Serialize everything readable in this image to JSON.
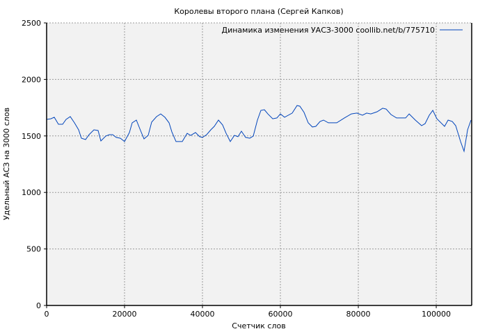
{
  "chart_data": {
    "type": "line",
    "title": "Королевы второго плана (Сергей Капков)",
    "xlabel": "Счетчик слов",
    "ylabel": "Удельный АСЗ на 3000 слов",
    "xlim": [
      0,
      109100
    ],
    "ylim": [
      0,
      2500
    ],
    "xticks": [
      0,
      20000,
      40000,
      60000,
      80000,
      100000
    ],
    "yticks": [
      0,
      500,
      1000,
      1500,
      2000,
      2500
    ],
    "grid": true,
    "legend_position": "top-right",
    "colors": {
      "line": "#0044bb",
      "background": "#f2f2f2",
      "grid": "#999999"
    },
    "series": [
      {
        "name": "Динамика изменения УАСЗ-3000 coollib.net/b/775710",
        "x": [
          0,
          1070,
          1960,
          3040,
          4110,
          5000,
          6070,
          7140,
          8210,
          8930,
          10000,
          10890,
          12140,
          13210,
          13930,
          15180,
          16070,
          16960,
          17860,
          18930,
          20000,
          21250,
          21960,
          23040,
          24110,
          25000,
          26070,
          26960,
          28210,
          29290,
          30360,
          31430,
          32140,
          33210,
          34820,
          36070,
          36960,
          38210,
          39290,
          40000,
          41070,
          42140,
          43040,
          44110,
          45180,
          46070,
          47140,
          48210,
          49110,
          50000,
          51070,
          52140,
          53040,
          54110,
          55000,
          55890,
          56790,
          58040,
          59110,
          60000,
          61070,
          63040,
          64290,
          65000,
          66070,
          67140,
          68210,
          69110,
          70180,
          71070,
          72320,
          74460,
          76430,
          78210,
          79640,
          81070,
          82140,
          83210,
          84820,
          86250,
          87140,
          88390,
          89820,
          92140,
          93040,
          94640,
          96250,
          97140,
          98210,
          99110,
          100180,
          102140,
          103040,
          104110,
          105000,
          106250,
          107140,
          108040,
          108930
        ],
        "y": [
          1646,
          1652,
          1665,
          1603,
          1603,
          1646,
          1671,
          1616,
          1554,
          1480,
          1468,
          1511,
          1554,
          1548,
          1456,
          1499,
          1511,
          1511,
          1487,
          1480,
          1450,
          1530,
          1616,
          1640,
          1548,
          1474,
          1505,
          1622,
          1671,
          1695,
          1665,
          1616,
          1536,
          1450,
          1450,
          1523,
          1505,
          1530,
          1493,
          1487,
          1511,
          1554,
          1585,
          1640,
          1597,
          1523,
          1450,
          1505,
          1493,
          1542,
          1487,
          1480,
          1499,
          1640,
          1726,
          1732,
          1695,
          1652,
          1659,
          1695,
          1665,
          1702,
          1769,
          1763,
          1708,
          1616,
          1579,
          1585,
          1628,
          1640,
          1616,
          1616,
          1659,
          1695,
          1702,
          1683,
          1702,
          1695,
          1714,
          1745,
          1738,
          1689,
          1659,
          1659,
          1695,
          1640,
          1591,
          1609,
          1683,
          1726,
          1652,
          1585,
          1640,
          1628,
          1591,
          1450,
          1364,
          1554,
          1640
        ]
      }
    ]
  }
}
